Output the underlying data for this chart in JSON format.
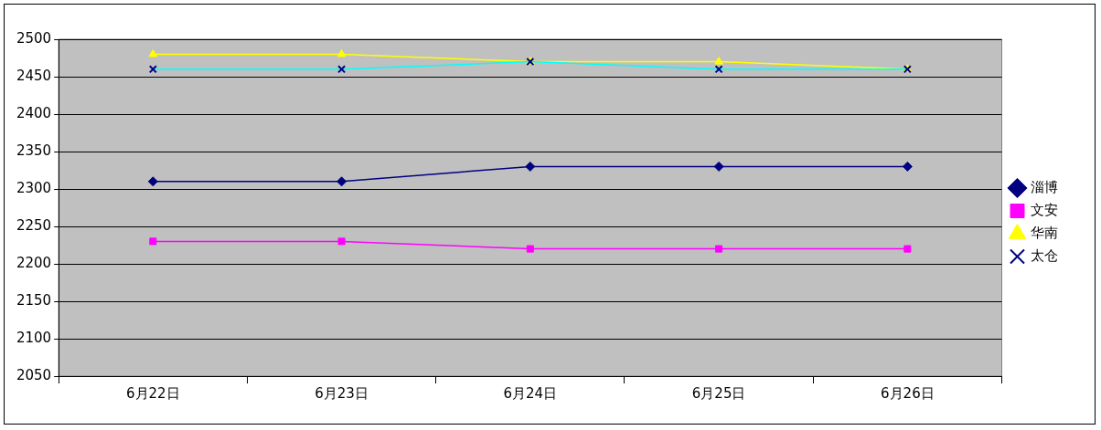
{
  "chart_data": {
    "type": "line",
    "categories": [
      "6月22日",
      "6月23日",
      "6月24日",
      "6月25日",
      "6月26日"
    ],
    "series": [
      {
        "name": "淄博",
        "color": "#000080",
        "marker": "diamond",
        "values": [
          2310,
          2310,
          2330,
          2330,
          2330
        ]
      },
      {
        "name": "文安",
        "color": "#ff00ff",
        "marker": "square",
        "values": [
          2230,
          2230,
          2220,
          2220,
          2220
        ]
      },
      {
        "name": "华南",
        "color": "#ffff00",
        "marker": "triangle",
        "values": [
          2480,
          2480,
          2470,
          2470,
          2460
        ]
      },
      {
        "name": "太仓",
        "color": "#00ffff",
        "marker": "cross",
        "values": [
          2460,
          2460,
          2470,
          2460,
          2460
        ]
      }
    ],
    "ylim": [
      2050,
      2500
    ],
    "yticks": [
      2050,
      2100,
      2150,
      2200,
      2250,
      2300,
      2350,
      2400,
      2450,
      2500
    ],
    "grid": "y",
    "legend": "right"
  }
}
